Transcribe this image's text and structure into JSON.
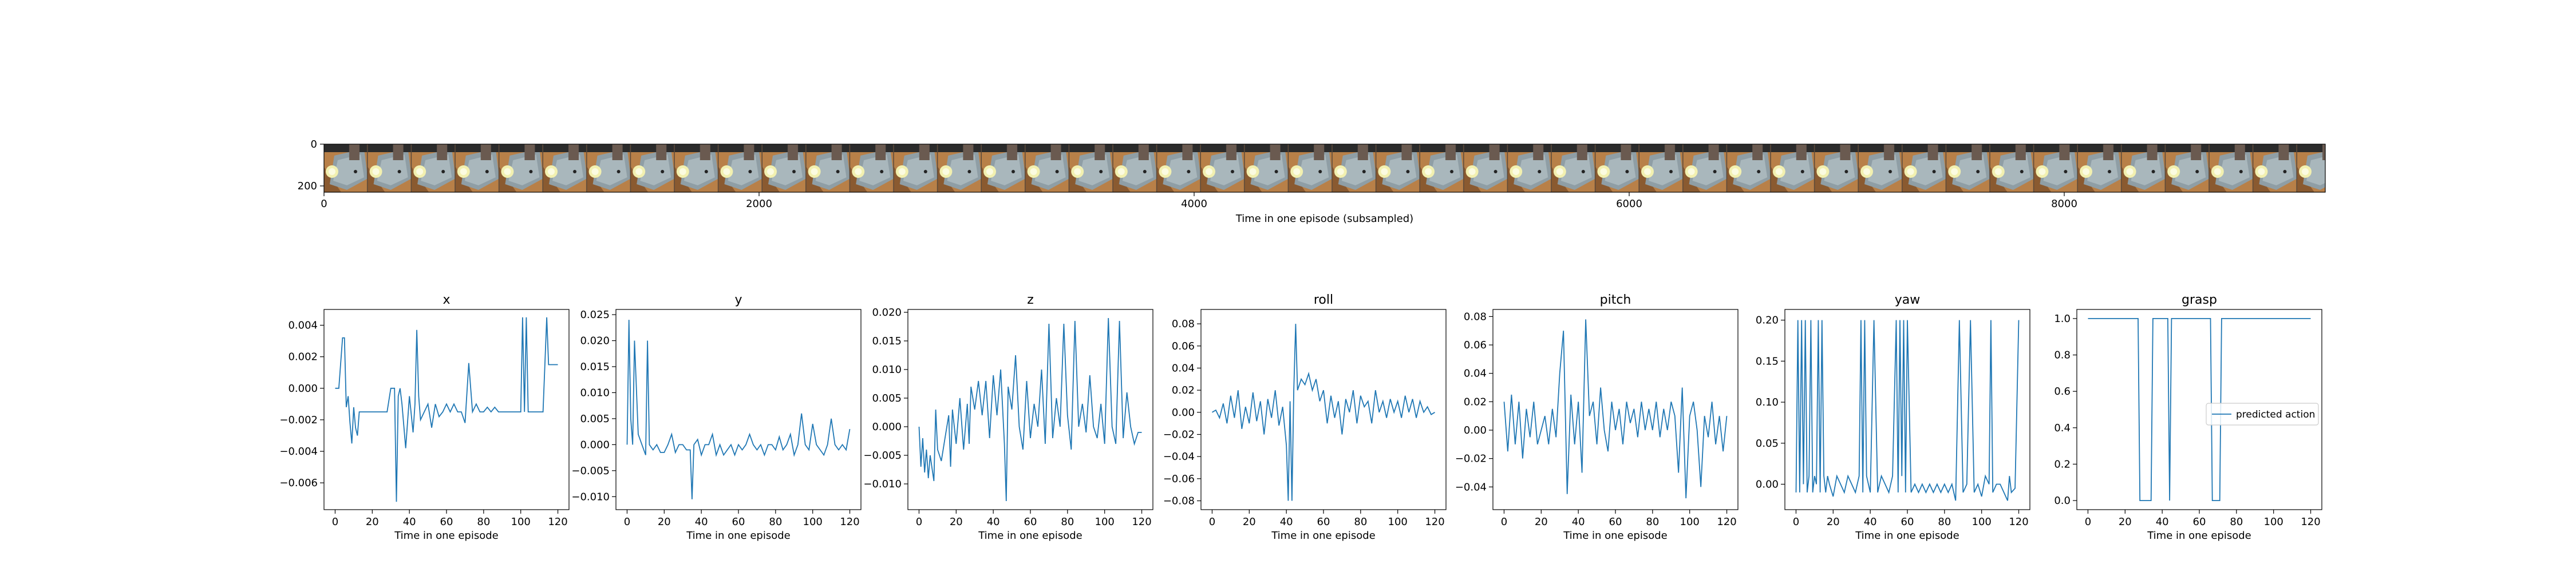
{
  "filmstrip": {
    "xlabel": "Time in one episode (subsampled)",
    "xticks": [
      0,
      2000,
      4000,
      6000,
      8000
    ],
    "yticks": [
      0,
      200
    ],
    "xlim": [
      0,
      9200
    ],
    "ylim": [
      0,
      230
    ],
    "frame_count": 39
  },
  "chart_data": [
    {
      "type": "line",
      "title": "x",
      "xlabel": "Time in one episode",
      "xlim": [
        -6,
        126
      ],
      "ylim": [
        -0.0077,
        0.005
      ],
      "xticks": [
        0,
        20,
        40,
        60,
        80,
        100,
        120
      ],
      "yticks": [
        0.004,
        0.002,
        0.0,
        -0.002,
        -0.004,
        -0.006
      ],
      "ytick_labels": [
        "0.004",
        "0.002",
        "0.000",
        "−0.002",
        "−0.004",
        "−0.006"
      ],
      "x": [
        0,
        2,
        4,
        5,
        6,
        7,
        8,
        9,
        10,
        11,
        12,
        13,
        14,
        16,
        18,
        20,
        24,
        26,
        28,
        30,
        32,
        33,
        34,
        35,
        36,
        38,
        40,
        42,
        43,
        44,
        45,
        46,
        48,
        50,
        52,
        54,
        56,
        58,
        60,
        62,
        64,
        66,
        68,
        70,
        72,
        74,
        76,
        78,
        80,
        82,
        84,
        86,
        88,
        90,
        92,
        94,
        96,
        98,
        100,
        101,
        102,
        103,
        104,
        106,
        108,
        110,
        112,
        114,
        115,
        116,
        118,
        120
      ],
      "values": [
        0,
        0,
        0.0032,
        0.0032,
        -0.0012,
        -0.0005,
        -0.0022,
        -0.0035,
        -0.0012,
        -0.0025,
        -0.003,
        -0.0015,
        -0.0015,
        -0.0015,
        -0.0015,
        -0.0015,
        -0.0015,
        -0.0015,
        -0.0015,
        0,
        0,
        -0.0072,
        -0.0005,
        0,
        -0.001,
        -0.0038,
        -0.0005,
        -0.0028,
        -0.001,
        0.0037,
        -0.0005,
        -0.002,
        -0.0015,
        -0.001,
        -0.0025,
        -0.001,
        -0.0018,
        -0.0015,
        -0.001,
        -0.0015,
        -0.001,
        -0.0015,
        -0.0015,
        -0.0022,
        0.0016,
        -0.0015,
        -0.001,
        -0.0015,
        -0.0015,
        -0.0012,
        -0.0015,
        -0.0012,
        -0.0015,
        -0.0015,
        -0.0015,
        -0.0015,
        -0.0015,
        -0.0015,
        -0.0015,
        0.0045,
        -0.0015,
        0.0045,
        -0.0015,
        -0.0015,
        -0.0015,
        -0.0015,
        -0.0015,
        0.0045,
        0.0015,
        0.0015,
        0.0015,
        0.0015
      ]
    },
    {
      "type": "line",
      "title": "y",
      "xlabel": "Time in one episode",
      "xlim": [
        -6,
        126
      ],
      "ylim": [
        -0.0125,
        0.026
      ],
      "xticks": [
        0,
        20,
        40,
        60,
        80,
        100,
        120
      ],
      "yticks": [
        0.025,
        0.02,
        0.015,
        0.01,
        0.005,
        0.0,
        -0.005,
        -0.01
      ],
      "ytick_labels": [
        "0.025",
        "0.020",
        "0.015",
        "0.010",
        "0.005",
        "0.000",
        "−0.005",
        "−0.010"
      ],
      "x": [
        0,
        1,
        2,
        3,
        4,
        6,
        8,
        10,
        11,
        12,
        14,
        16,
        18,
        20,
        22,
        24,
        26,
        28,
        30,
        32,
        34,
        35,
        36,
        38,
        40,
        42,
        44,
        46,
        48,
        50,
        52,
        54,
        56,
        58,
        60,
        62,
        64,
        66,
        68,
        70,
        72,
        74,
        76,
        78,
        80,
        82,
        84,
        86,
        88,
        90,
        92,
        94,
        96,
        98,
        100,
        102,
        104,
        106,
        108,
        110,
        112,
        114,
        116,
        118,
        120
      ],
      "values": [
        0,
        0.024,
        0.005,
        0,
        0.02,
        0.002,
        0,
        -0.002,
        0.02,
        0,
        -0.001,
        0,
        -0.0015,
        -0.0015,
        0,
        0.002,
        -0.0015,
        0,
        0,
        -0.001,
        -0.001,
        -0.0105,
        0,
        0.001,
        -0.002,
        0,
        0,
        0.002,
        -0.002,
        0,
        -0.002,
        -0.001,
        0,
        -0.002,
        0,
        -0.001,
        0,
        0.002,
        0,
        -0.001,
        0,
        -0.002,
        0,
        0,
        -0.001,
        0.0015,
        -0.001,
        0,
        0.002,
        -0.002,
        0,
        0.006,
        0,
        -0.001,
        0.004,
        0,
        -0.001,
        -0.002,
        0,
        0.005,
        0,
        -0.001,
        0,
        -0.001,
        0.003
      ]
    },
    {
      "type": "line",
      "title": "z",
      "xlabel": "Time in one episode",
      "xlim": [
        -6,
        126
      ],
      "ylim": [
        -0.0145,
        0.0205
      ],
      "xticks": [
        0,
        20,
        40,
        60,
        80,
        100,
        120
      ],
      "yticks": [
        0.02,
        0.015,
        0.01,
        0.005,
        0.0,
        -0.005,
        -0.01
      ],
      "ytick_labels": [
        "0.020",
        "0.015",
        "0.010",
        "0.005",
        "0.000",
        "−0.005",
        "−0.010"
      ],
      "x": [
        0,
        1,
        2,
        3,
        4,
        5,
        6,
        8,
        9,
        10,
        12,
        14,
        16,
        17,
        18,
        20,
        22,
        24,
        26,
        27,
        28,
        30,
        32,
        34,
        36,
        38,
        40,
        42,
        44,
        46,
        47,
        48,
        50,
        52,
        54,
        56,
        58,
        60,
        62,
        64,
        66,
        68,
        70,
        72,
        74,
        76,
        78,
        80,
        82,
        84,
        86,
        88,
        90,
        92,
        94,
        96,
        98,
        100,
        102,
        104,
        106,
        108,
        110,
        112,
        114,
        116,
        118,
        120
      ],
      "values": [
        0,
        -0.007,
        -0.002,
        -0.008,
        -0.004,
        -0.009,
        -0.005,
        -0.0095,
        0.003,
        -0.004,
        -0.006,
        -0.002,
        0.002,
        -0.007,
        0.003,
        -0.003,
        0.005,
        -0.004,
        0.004,
        -0.003,
        0.007,
        0.003,
        0.008,
        0.002,
        0.008,
        -0.002,
        0.009,
        0.002,
        0.01,
        -0.003,
        -0.013,
        0.007,
        0.003,
        0.0125,
        0,
        -0.004,
        0.008,
        -0.002,
        0.004,
        0,
        0.01,
        -0.003,
        0.018,
        -0.002,
        0.005,
        0,
        0.018,
        0.002,
        -0.004,
        0.0185,
        0,
        0.004,
        -0.001,
        0.009,
        0,
        -0.002,
        0.004,
        -0.003,
        0.019,
        0,
        -0.003,
        0.0185,
        -0.002,
        0.006,
        0,
        -0.003,
        -0.001,
        -0.001
      ]
    },
    {
      "type": "line",
      "title": "roll",
      "xlabel": "Time in one episode",
      "xlim": [
        -6,
        126
      ],
      "ylim": [
        -0.088,
        0.093
      ],
      "xticks": [
        0,
        20,
        40,
        60,
        80,
        100,
        120
      ],
      "yticks": [
        0.08,
        0.06,
        0.04,
        0.02,
        0.0,
        -0.02,
        -0.04,
        -0.06,
        -0.08
      ],
      "ytick_labels": [
        "0.08",
        "0.06",
        "0.04",
        "0.02",
        "0.00",
        "−0.02",
        "−0.04",
        "−0.06",
        "−0.08"
      ],
      "x": [
        0,
        2,
        4,
        6,
        8,
        10,
        12,
        14,
        16,
        18,
        20,
        22,
        24,
        26,
        28,
        30,
        32,
        34,
        36,
        38,
        40,
        41,
        42,
        43,
        44,
        45,
        46,
        48,
        50,
        52,
        54,
        56,
        58,
        60,
        62,
        64,
        66,
        68,
        70,
        72,
        74,
        76,
        78,
        80,
        82,
        84,
        86,
        88,
        90,
        92,
        94,
        96,
        98,
        100,
        102,
        104,
        106,
        108,
        110,
        112,
        114,
        116,
        118,
        120
      ],
      "values": [
        0,
        0.002,
        -0.005,
        0.008,
        -0.01,
        0.015,
        -0.005,
        0.02,
        -0.015,
        0.005,
        -0.01,
        0.018,
        -0.008,
        0.01,
        -0.02,
        0.012,
        -0.005,
        0.02,
        -0.012,
        0.005,
        -0.03,
        -0.08,
        0.01,
        -0.08,
        0.02,
        0.08,
        0.02,
        0.03,
        0.025,
        0.035,
        0.02,
        0.03,
        0.01,
        0.02,
        -0.01,
        0.015,
        -0.005,
        0.01,
        -0.02,
        0.012,
        0,
        0.02,
        -0.01,
        0.015,
        0.005,
        0.01,
        -0.01,
        0.02,
        0,
        0.01,
        -0.005,
        0.012,
        0,
        0.01,
        -0.005,
        0.015,
        0,
        0.012,
        -0.005,
        0.01,
        0,
        0.005,
        -0.002,
        0
      ]
    },
    {
      "type": "line",
      "title": "pitch",
      "xlabel": "Time in one episode",
      "xlim": [
        -6,
        126
      ],
      "ylim": [
        -0.056,
        0.085
      ],
      "xticks": [
        0,
        20,
        40,
        60,
        80,
        100,
        120
      ],
      "yticks": [
        0.08,
        0.06,
        0.04,
        0.02,
        0.0,
        -0.02,
        -0.04
      ],
      "ytick_labels": [
        "0.08",
        "0.06",
        "0.04",
        "0.02",
        "0.00",
        "−0.02",
        "−0.04"
      ],
      "x": [
        0,
        2,
        4,
        6,
        8,
        10,
        12,
        14,
        16,
        18,
        20,
        22,
        24,
        26,
        28,
        30,
        32,
        34,
        36,
        38,
        40,
        42,
        44,
        46,
        48,
        50,
        52,
        54,
        56,
        58,
        60,
        62,
        64,
        66,
        68,
        70,
        72,
        74,
        76,
        78,
        80,
        82,
        84,
        86,
        88,
        90,
        92,
        94,
        96,
        98,
        100,
        102,
        104,
        106,
        108,
        110,
        112,
        114,
        116,
        118,
        120
      ],
      "values": [
        0.02,
        -0.015,
        0.025,
        -0.01,
        0.02,
        -0.02,
        0.015,
        -0.005,
        0.02,
        -0.01,
        0,
        0.01,
        -0.01,
        0.015,
        -0.005,
        0.04,
        0.07,
        -0.045,
        0.025,
        -0.01,
        0.02,
        -0.03,
        0.078,
        0.01,
        0.02,
        -0.01,
        0.03,
        0,
        -0.015,
        0.02,
        0,
        0.015,
        -0.01,
        0.02,
        0.005,
        0.015,
        -0.005,
        0.02,
        0,
        0.015,
        0,
        0.02,
        -0.005,
        0.015,
        0,
        0.02,
        0.01,
        -0.03,
        0.03,
        -0.048,
        0.01,
        0.02,
        0,
        -0.04,
        0.01,
        -0.005,
        0.02,
        -0.01,
        0.01,
        -0.015,
        0.01
      ]
    },
    {
      "type": "line",
      "title": "yaw",
      "xlabel": "Time in one episode",
      "xlim": [
        -6,
        126
      ],
      "ylim": [
        -0.031,
        0.213
      ],
      "xticks": [
        0,
        20,
        40,
        60,
        80,
        100,
        120
      ],
      "yticks": [
        0.2,
        0.15,
        0.1,
        0.05,
        0.0
      ],
      "ytick_labels": [
        "0.20",
        "0.15",
        "0.10",
        "0.05",
        "0.00"
      ],
      "x": [
        0,
        1,
        2,
        3,
        4,
        5,
        6,
        7,
        8,
        9,
        10,
        11,
        12,
        13,
        14,
        15,
        16,
        17,
        18,
        20,
        22,
        24,
        26,
        28,
        30,
        32,
        34,
        35,
        36,
        37,
        38,
        39,
        40,
        42,
        44,
        46,
        48,
        50,
        52,
        54,
        55,
        56,
        57,
        58,
        59,
        60,
        62,
        64,
        66,
        68,
        70,
        72,
        74,
        76,
        78,
        80,
        82,
        84,
        86,
        88,
        90,
        92,
        94,
        96,
        98,
        100,
        102,
        104,
        105,
        106,
        108,
        110,
        112,
        114,
        115,
        116,
        118,
        120
      ],
      "values": [
        -0.01,
        0.2,
        -0.01,
        0.2,
        0,
        0.2,
        -0.01,
        0.01,
        0.2,
        -0.01,
        0.01,
        0,
        0.2,
        -0.01,
        0.2,
        0.01,
        -0.01,
        0.01,
        0,
        -0.015,
        0.01,
        0,
        -0.01,
        0.01,
        0,
        -0.01,
        0.01,
        0.2,
        -0.01,
        0.2,
        0.01,
        0,
        -0.01,
        0.2,
        -0.01,
        0.01,
        0,
        -0.01,
        0.01,
        0.2,
        -0.01,
        0.2,
        0.01,
        0.2,
        -0.01,
        0.2,
        -0.01,
        0,
        -0.01,
        0,
        -0.01,
        0,
        -0.01,
        0,
        -0.01,
        0,
        -0.01,
        0,
        -0.02,
        0.2,
        -0.01,
        0,
        0.2,
        -0.01,
        0,
        -0.015,
        0.01,
        0,
        0.2,
        -0.01,
        0,
        0,
        -0.01,
        -0.02,
        0.01,
        -0.01,
        -0.005,
        0.2
      ]
    },
    {
      "type": "line",
      "title": "grasp",
      "xlabel": "Time in one episode",
      "legend_position": "right",
      "xlim": [
        -6,
        126
      ],
      "ylim": [
        -0.05,
        1.05
      ],
      "xticks": [
        0,
        20,
        40,
        60,
        80,
        100,
        120
      ],
      "yticks": [
        1.0,
        0.8,
        0.6,
        0.4,
        0.2,
        0.0
      ],
      "ytick_labels": [
        "1.0",
        "0.8",
        "0.6",
        "0.4",
        "0.2",
        "0.0"
      ],
      "series": [
        {
          "name": "predicted action",
          "color": "#1f77b4",
          "x": [
            0,
            27,
            28,
            29,
            34,
            35,
            36,
            43,
            44,
            45,
            66,
            67,
            68,
            69,
            71,
            72,
            73,
            120
          ],
          "values": [
            1,
            1,
            0,
            0,
            0,
            1,
            1,
            1,
            0,
            1,
            1,
            0,
            0,
            0,
            0,
            1,
            1,
            1
          ]
        }
      ]
    }
  ]
}
